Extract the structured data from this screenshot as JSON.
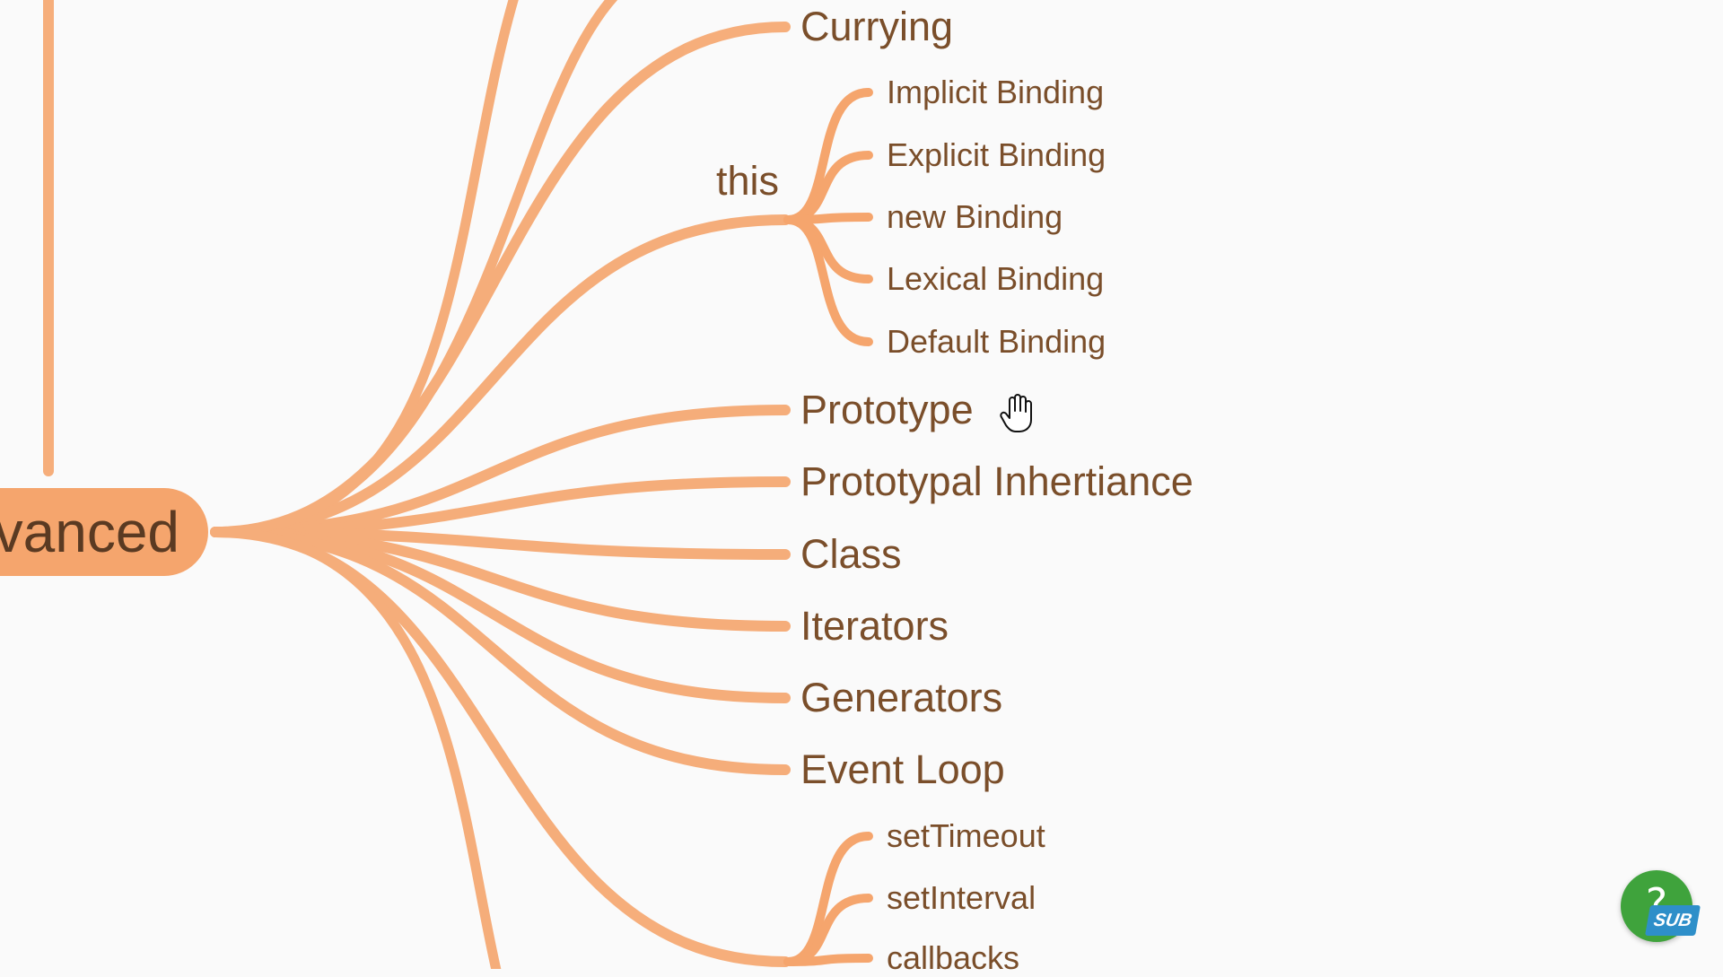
{
  "central": {
    "label": "vanced"
  },
  "topics": [
    {
      "id": "currying",
      "label": "Currying"
    },
    {
      "id": "this",
      "label": "this",
      "children": [
        "Implicit Binding",
        "Explicit Binding",
        "new Binding",
        "Lexical Binding",
        "Default Binding"
      ]
    },
    {
      "id": "prototype",
      "label": "Prototype"
    },
    {
      "id": "prototypal-inheritance",
      "label": "Prototypal Inhertiance"
    },
    {
      "id": "class",
      "label": "Class"
    },
    {
      "id": "iterators",
      "label": "Iterators"
    },
    {
      "id": "generators",
      "label": "Generators"
    },
    {
      "id": "event-loop",
      "label": "Event Loop"
    },
    {
      "id": "timers",
      "label": "",
      "children": [
        "setTimeout",
        "setInterval",
        "callbacks"
      ]
    }
  ],
  "help": {
    "symbol": "?",
    "badge": "SUB"
  },
  "colors": {
    "branch": "#f5a56d",
    "text": "#7a4e2a",
    "node": "#f5a56d",
    "help": "#3fa33c",
    "badge": "#2e8fc9"
  },
  "icons": {
    "cursor": "hand-cursor-icon",
    "help": "question-icon"
  }
}
